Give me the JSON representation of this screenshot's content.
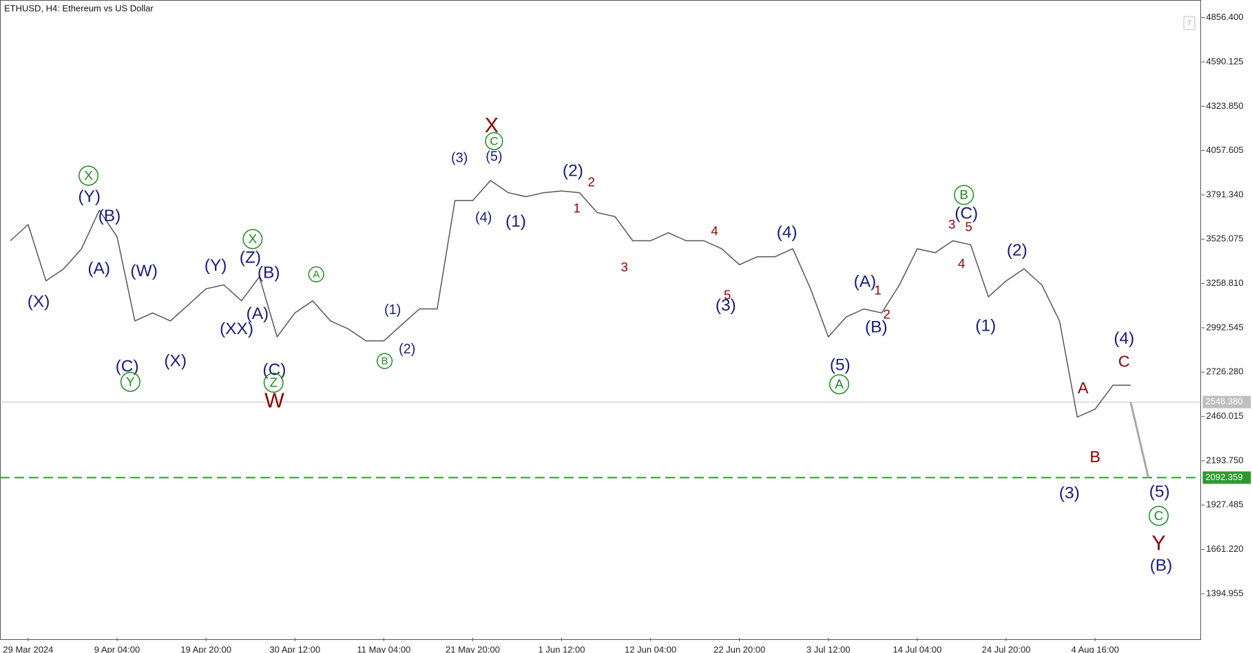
{
  "chart_data": {
    "type": "line",
    "title": "ETHUSD, H4:  Ethereum vs US Dollar",
    "categories": [
      null,
      "29 Mar 2024",
      null,
      null,
      null,
      null,
      "9 Apr 04:00",
      null,
      null,
      null,
      null,
      "19 Apr 20:00",
      null,
      null,
      null,
      null,
      "30 Apr 12:00",
      null,
      null,
      null,
      null,
      "11 May 04:00",
      null,
      null,
      null,
      null,
      "21 May 20:00",
      null,
      null,
      null,
      null,
      "1 Jun 12:00",
      null,
      null,
      null,
      null,
      "12 Jun 04:00",
      null,
      null,
      null,
      null,
      "22 Jun 20:00",
      null,
      null,
      null,
      null,
      "3 Jul 12:00",
      null,
      null,
      null,
      null,
      "14 Jul 04:00",
      null,
      null,
      null,
      null,
      "24 Jul 20:00",
      null,
      null,
      null,
      null,
      "4 Aug 16:00",
      null,
      null,
      null
    ],
    "series": [
      {
        "color": "#555555",
        "values": [
          3516,
          3613,
          3275,
          3347,
          3468,
          3699,
          3540,
          3034,
          3082,
          3034,
          3130,
          3227,
          3251,
          3155,
          3299,
          2938,
          3082,
          3155,
          3034,
          2986,
          2914,
          2914,
          3010,
          3106,
          3106,
          3757,
          3757,
          3878,
          3805,
          3781,
          3805,
          3815,
          3805,
          3685,
          3661,
          3516,
          3516,
          3564,
          3516,
          3516,
          3468,
          3372,
          3420,
          3420,
          3468,
          3227,
          2938,
          3058,
          3106,
          3082,
          3251,
          3468,
          3444,
          3516,
          3492,
          3179,
          3275,
          3347,
          3251,
          3034,
          2456,
          2504,
          2648,
          2648,
          null
        ]
      },
      {
        "color": "#a8a8a8",
        "values": [
          null,
          null,
          null,
          null,
          null,
          null,
          null,
          null,
          null,
          null,
          null,
          null,
          null,
          null,
          null,
          null,
          null,
          null,
          null,
          null,
          null,
          null,
          null,
          null,
          null,
          null,
          null,
          null,
          null,
          null,
          null,
          null,
          null,
          null,
          null,
          null,
          null,
          null,
          null,
          null,
          null,
          null,
          null,
          null,
          null,
          null,
          null,
          null,
          null,
          null,
          null,
          null,
          null,
          null,
          null,
          null,
          null,
          null,
          null,
          null,
          null,
          null,
          null,
          2546,
          2092
        ]
      }
    ],
    "ylim": [
      1130,
      4953
    ],
    "yticks": [
      {
        "value": 4856.4,
        "label": "4856.400"
      },
      {
        "value": 4590.125,
        "label": "4590.125"
      },
      {
        "value": 4323.85,
        "label": "4323.850"
      },
      {
        "value": 4057.605,
        "label": "4057.605"
      },
      {
        "value": 3791.34,
        "label": "3791.340"
      },
      {
        "value": 3525.075,
        "label": "3525.075"
      },
      {
        "value": 3258.81,
        "label": "3258.810"
      },
      {
        "value": 2992.545,
        "label": "2992.545"
      },
      {
        "value": 2726.28,
        "label": "2726.280"
      },
      {
        "value": 2460.015,
        "label": "2460.015"
      },
      {
        "value": 2193.75,
        "label": "2193.750"
      },
      {
        "value": 1927.485,
        "label": "1927.485"
      },
      {
        "value": 1661.22,
        "label": "1661.220"
      },
      {
        "value": 1394.955,
        "label": "1394.955"
      }
    ],
    "levels": [
      {
        "value": 2546.38,
        "label": "2546.380",
        "color": "#c0c0c0",
        "dashed": false
      },
      {
        "value": 2092.359,
        "label": "2092.359",
        "color": "#2e9a2e",
        "dashed": true
      }
    ],
    "grid": false,
    "annotations": [
      {
        "text": "(X)",
        "color": "#1b1b7a"
      },
      {
        "text": "(Y)",
        "color": "#1b1b7a"
      },
      {
        "text": "(B)",
        "color": "#1b1b7a"
      },
      {
        "text": "(A)",
        "color": "#1b1b7a"
      },
      {
        "text": "(W)",
        "color": "#1b1b7a"
      },
      {
        "text": "(C)",
        "color": "#1b1b7a"
      },
      {
        "text": "(X)",
        "color": "#1b1b7a"
      },
      {
        "text": "(Y)",
        "color": "#1b1b7a"
      },
      {
        "text": "(Z)",
        "color": "#1b1b7a"
      },
      {
        "text": "(B)",
        "color": "#1b1b7a"
      },
      {
        "text": "(A)",
        "color": "#1b1b7a"
      },
      {
        "text": "(XX)",
        "color": "#1b1b7a"
      },
      {
        "text": "(C)",
        "color": "#1b1b7a"
      },
      {
        "text": "(1)",
        "color": "#1b1b7a"
      },
      {
        "text": "(2)",
        "color": "#1b1b7a"
      },
      {
        "text": "(3)",
        "color": "#1b1b7a"
      },
      {
        "text": "(5)",
        "color": "#1b1b7a"
      },
      {
        "text": "(4)",
        "color": "#1b1b7a"
      },
      {
        "text": "(1)",
        "color": "#1b1b7a"
      },
      {
        "text": "(2)",
        "color": "#1b1b7a"
      },
      {
        "text": "(3)",
        "color": "#1b1b7a"
      },
      {
        "text": "(4)",
        "color": "#1b1b7a"
      },
      {
        "text": "(5)",
        "color": "#1b1b7a"
      },
      {
        "text": "(A)",
        "color": "#1b1b7a"
      },
      {
        "text": "(B)",
        "color": "#1b1b7a"
      },
      {
        "text": "(C)",
        "color": "#1b1b7a"
      },
      {
        "text": "(2)",
        "color": "#1b1b7a"
      },
      {
        "text": "(1)",
        "color": "#1b1b7a"
      },
      {
        "text": "(3)",
        "color": "#1b1b7a"
      },
      {
        "text": "(4)",
        "color": "#1b1b7a"
      },
      {
        "text": "(5)",
        "color": "#1b1b7a"
      },
      {
        "text": "(B)",
        "color": "#1b1b7a"
      },
      {
        "text": "X",
        "color": "#8b0000"
      },
      {
        "text": "W",
        "color": "#8b0000"
      },
      {
        "text": "Y",
        "color": "#8b0000"
      },
      {
        "text": "2",
        "color": "#8b0000"
      },
      {
        "text": "1",
        "color": "#8b0000"
      },
      {
        "text": "3",
        "color": "#8b0000"
      },
      {
        "text": "4",
        "color": "#8b0000"
      },
      {
        "text": "5",
        "color": "#8b0000"
      },
      {
        "text": "1",
        "color": "#8b0000"
      },
      {
        "text": "2",
        "color": "#8b0000"
      },
      {
        "text": "3",
        "color": "#8b0000"
      },
      {
        "text": "5",
        "color": "#8b0000"
      },
      {
        "text": "4",
        "color": "#8b0000"
      },
      {
        "text": "A",
        "color": "#8b0000"
      },
      {
        "text": "B",
        "color": "#8b0000"
      },
      {
        "text": "C",
        "color": "#8b0000"
      },
      {
        "text": "X",
        "color": "#1e8a1e",
        "circled": true
      },
      {
        "text": "Y",
        "color": "#1e8a1e",
        "circled": true
      },
      {
        "text": "X",
        "color": "#1e8a1e",
        "circled": true
      },
      {
        "text": "Z",
        "color": "#1e8a1e",
        "circled": true
      },
      {
        "text": "A",
        "color": "#1e8a1e",
        "circled": true
      },
      {
        "text": "B",
        "color": "#1e8a1e",
        "circled": true
      },
      {
        "text": "C",
        "color": "#1e8a1e",
        "circled": true
      },
      {
        "text": "A",
        "color": "#1e8a1e",
        "circled": true
      },
      {
        "text": "B",
        "color": "#1e8a1e",
        "circled": true
      },
      {
        "text": "C",
        "color": "#1e8a1e",
        "circled": true
      }
    ]
  }
}
